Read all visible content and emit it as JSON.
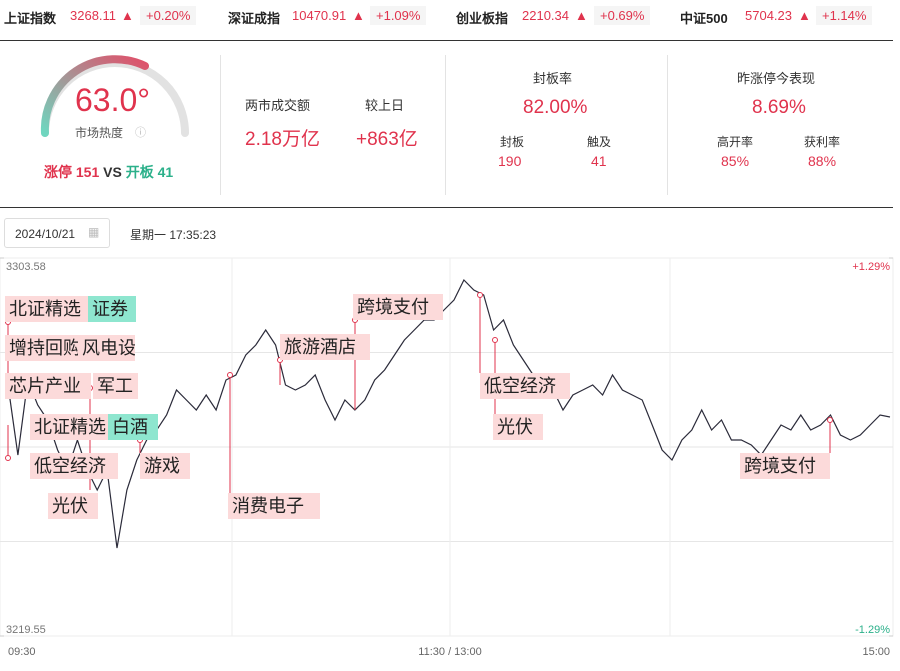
{
  "indices": [
    {
      "name": "上证指数",
      "value": "3268.11",
      "change": "+0.20%"
    },
    {
      "name": "深证成指",
      "value": "10470.91",
      "change": "+1.09%"
    },
    {
      "name": "创业板指",
      "value": "2210.34",
      "change": "+0.69%"
    },
    {
      "name": "中证500",
      "value": "5704.23",
      "change": "+1.14%"
    }
  ],
  "heat": {
    "value": "63.0°",
    "caption": "市场热度",
    "limit_up_label": "涨停",
    "limit_up": "151",
    "vs": "VS",
    "opened_label": "开板",
    "opened": "41"
  },
  "turnover": {
    "label": "两市成交额",
    "value": "2.18万亿",
    "diff_label": "较上日",
    "diff": "+863亿"
  },
  "seal": {
    "title": "封板率",
    "rate": "82.00%",
    "sealed_label": "封板",
    "sealed": "190",
    "touched_label": "触及",
    "touched": "41"
  },
  "yesterday": {
    "title": "昨涨停今表现",
    "value": "8.69%",
    "open_label": "高开率",
    "open": "85%",
    "profit_label": "获利率",
    "profit": "88%"
  },
  "date": "2024/10/21",
  "time": "星期一 17:35:23",
  "chart_data": {
    "type": "line",
    "color": "#2b2b3a",
    "values": [
      3275.35,
      3259.79,
      3276.46,
      3270.9,
      3267.57,
      3260.9,
      3256.45,
      3263.12,
      3256.45,
      3252.01,
      3256.45,
      3239.11,
      3252.01,
      3258.68,
      3263.12,
      3265.34,
      3268.68,
      3274.24,
      3272.01,
      3269.79,
      3273.13,
      3269.79,
      3276.46,
      3277.57,
      3282.02,
      3284.24,
      3287.57,
      3284.24,
      3275.35,
      3274.24,
      3275.35,
      3277.57,
      3272.01,
      3267.57,
      3272.01,
      3269.79,
      3272.01,
      3276.46,
      3278.68,
      3282.02,
      3285.35,
      3287.57,
      3289.8,
      3289.8,
      3292.02,
      3294.24,
      3298.69,
      3296.47,
      3295.36,
      3287.57,
      3289.8,
      3284.24,
      3280.91,
      3277.57,
      3276.46,
      3274.24,
      3269.79,
      3273.13,
      3274.24,
      3275.35,
      3273.13,
      3277.57,
      3274.24,
      3273.13,
      3272.01,
      3266.45,
      3260.9,
      3258.68,
      3263.12,
      3265.34,
      3269.79,
      3265.34,
      3267.57,
      3263.12,
      3263.12,
      3262.01,
      3259.79,
      3263.12,
      3266.45,
      3265.34,
      3268.68,
      3265.34,
      3266.45,
      3268.68,
      3264.23,
      3263.12,
      3264.23,
      3266.45,
      3268.68,
      3268.23
    ],
    "ylim": [
      3219.55,
      3303.58
    ],
    "yticks": [
      3219.55,
      3303.58
    ],
    "y2lim": [
      -1.29,
      1.29
    ],
    "y2ticks": [
      {
        "value": -1.29,
        "label": "-1.29%"
      },
      {
        "value": 1.29,
        "label": "+1.29%"
      }
    ],
    "x_labels": [
      "09:30",
      "11:30 / 13:00",
      "15:00"
    ],
    "annotations": [
      {
        "text": "北证精选",
        "color": "#fcdada"
      },
      {
        "text": "证券",
        "color": "#8ee6cf"
      },
      {
        "text": "增持回购",
        "color": "#fcdada"
      },
      {
        "text": "风电设备",
        "color": "#fcdada"
      },
      {
        "text": "芯片产业",
        "color": "#fcdada"
      },
      {
        "text": "军工",
        "color": "#fcdada"
      },
      {
        "text": "北证精选",
        "color": "#fcdada"
      },
      {
        "text": "白酒",
        "color": "#8ee6cf"
      },
      {
        "text": "低空经济",
        "color": "#fcdada"
      },
      {
        "text": "游戏",
        "color": "#fcdada"
      },
      {
        "text": "光伏",
        "color": "#fcdada"
      },
      {
        "text": "消费电子",
        "color": "#fcdada"
      },
      {
        "text": "旅游酒店",
        "color": "#fcdada"
      },
      {
        "text": "跨境支付",
        "color": "#fcdada"
      },
      {
        "text": "低空经济",
        "color": "#fcdada"
      },
      {
        "text": "光伏",
        "color": "#fcdada"
      },
      {
        "text": "跨境支付",
        "color": "#fcdada"
      }
    ]
  }
}
